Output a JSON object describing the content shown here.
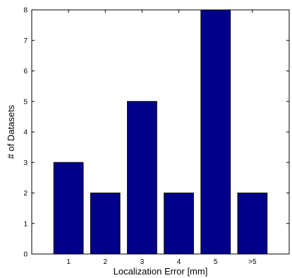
{
  "chart_data": {
    "type": "bar",
    "categories": [
      "1",
      "2",
      "3",
      "4",
      "5",
      ">5"
    ],
    "values": [
      3,
      2,
      5,
      2,
      8,
      2
    ],
    "title": "",
    "xlabel": "Localization Error [mm]",
    "ylabel": "# of Datasets",
    "ylim": [
      0,
      8
    ],
    "yticks": [
      0,
      1,
      2,
      3,
      4,
      5,
      6,
      7,
      8
    ],
    "grid": false,
    "bar_color": "#00008B"
  }
}
